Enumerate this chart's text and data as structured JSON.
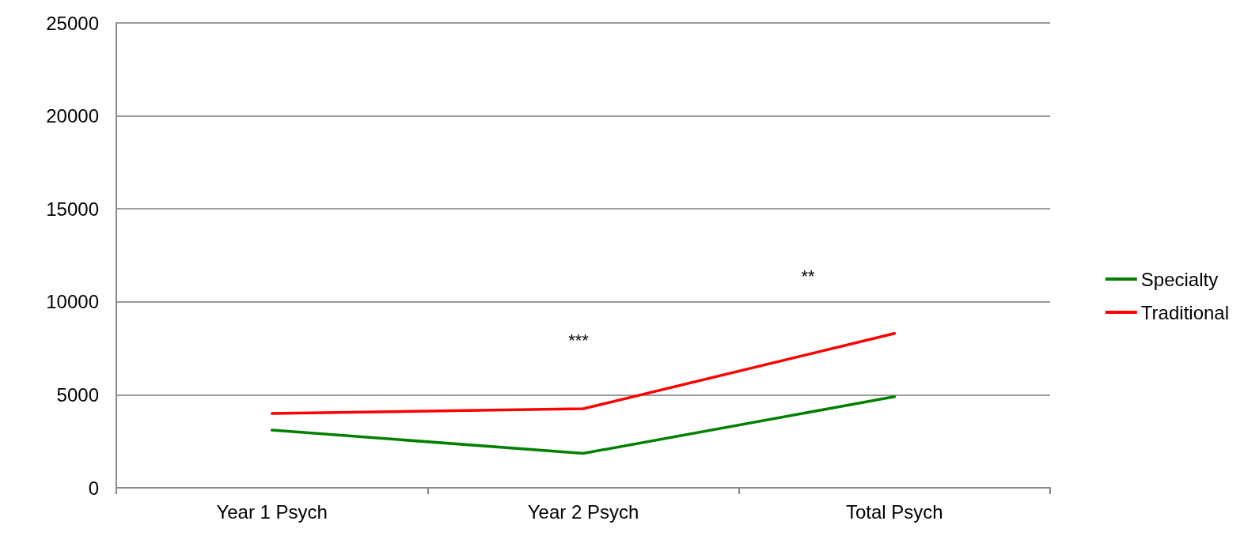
{
  "chart_data": {
    "type": "line",
    "categories": [
      "Year 1 Psych",
      "Year 2 Psych",
      "Total Psych"
    ],
    "series": [
      {
        "name": "Specialty",
        "color": "#008000",
        "values": [
          3100,
          1850,
          4900
        ]
      },
      {
        "name": "Traditional",
        "color": "#ff0000",
        "values": [
          4000,
          4250,
          8300
        ]
      }
    ],
    "ylim": [
      0,
      25000
    ],
    "yticks": [
      0,
      5000,
      10000,
      15000,
      20000,
      25000
    ],
    "grid": "y",
    "legend": "right",
    "marker": "none",
    "line_style": "solid",
    "annotations": [
      "***",
      "**"
    ]
  }
}
